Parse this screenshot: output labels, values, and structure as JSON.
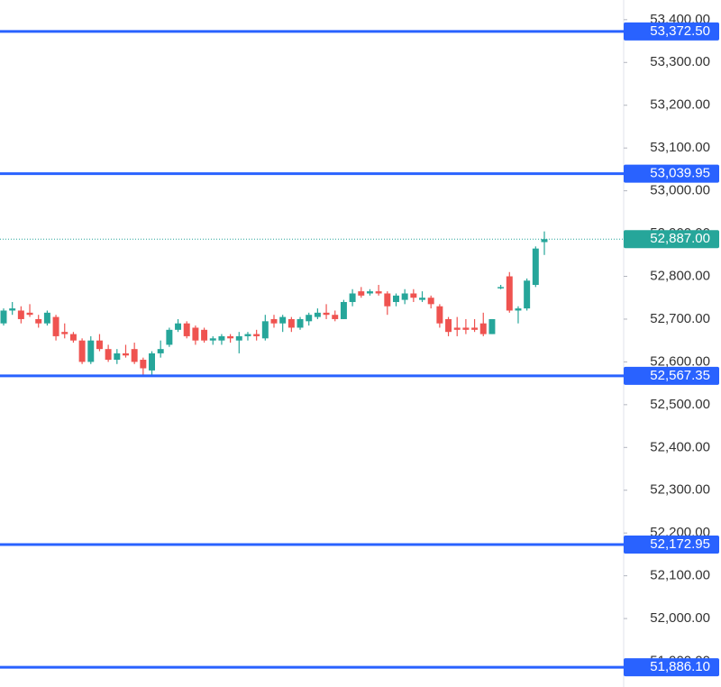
{
  "chart_data": {
    "type": "candlestick",
    "open": [
      52690,
      52720,
      52720,
      52715,
      52700,
      52690,
      52705,
      52670,
      52665,
      52650,
      52600,
      52650,
      52630,
      52605,
      52620,
      52630,
      52605,
      52580,
      52620,
      52640,
      52675,
      52690,
      52680,
      52675,
      52650,
      52650,
      52660,
      52650,
      52660,
      52665,
      52655,
      52700,
      52690,
      52700,
      52680,
      52695,
      52705,
      52715,
      52710,
      52700,
      52740,
      52765,
      52760,
      52765,
      52760,
      52740,
      52745,
      52760,
      52745,
      52750,
      52730,
      52700,
      52680,
      52680,
      52680,
      52690,
      52665,
      52775,
      52800,
      52720,
      52725,
      52780,
      52880
    ],
    "high": [
      52725,
      52740,
      52730,
      52735,
      52710,
      52720,
      52710,
      52690,
      52670,
      52655,
      52660,
      52665,
      52640,
      52630,
      52640,
      52645,
      52610,
      52625,
      52650,
      52680,
      52700,
      52695,
      52685,
      52680,
      52660,
      52665,
      52665,
      52670,
      52670,
      52675,
      52710,
      52710,
      52710,
      52705,
      52705,
      52715,
      52725,
      52735,
      52720,
      52745,
      52770,
      52775,
      52770,
      52780,
      52765,
      52760,
      52770,
      52770,
      52765,
      52755,
      52735,
      52705,
      52705,
      52700,
      52700,
      52715,
      52700,
      52780,
      52810,
      52730,
      52795,
      52870,
      52905
    ],
    "low": [
      52685,
      52710,
      52690,
      52705,
      52680,
      52685,
      52650,
      52655,
      52645,
      52595,
      52595,
      52625,
      52600,
      52595,
      52610,
      52595,
      52570,
      52567,
      52610,
      52635,
      52670,
      52655,
      52640,
      52645,
      52640,
      52640,
      52645,
      52620,
      52650,
      52650,
      52650,
      52680,
      52670,
      52670,
      52675,
      52685,
      52700,
      52700,
      52695,
      52700,
      52730,
      52750,
      52755,
      52755,
      52710,
      52730,
      52735,
      52740,
      52740,
      52725,
      52680,
      52660,
      52660,
      52665,
      52670,
      52660,
      52665,
      52770,
      52715,
      52690,
      52720,
      52775,
      52850
    ],
    "close": [
      52720,
      52725,
      52700,
      52710,
      52690,
      52715,
      52660,
      52665,
      52650,
      52600,
      52650,
      52630,
      52605,
      52620,
      52615,
      52600,
      52585,
      52620,
      52630,
      52675,
      52690,
      52660,
      52650,
      52650,
      52655,
      52660,
      52655,
      52660,
      52665,
      52660,
      52695,
      52690,
      52705,
      52680,
      52700,
      52710,
      52715,
      52710,
      52700,
      52740,
      52760,
      52755,
      52765,
      52760,
      52730,
      52755,
      52760,
      52750,
      52750,
      52735,
      52690,
      52670,
      52675,
      52675,
      52675,
      52665,
      52700,
      52775,
      52720,
      52725,
      52790,
      52865,
      52887
    ],
    "up_color": "#26a69a",
    "down_color": "#ef5350",
    "ylim": [
      51840,
      53446
    ],
    "yticks": [
      {
        "value": 53400,
        "label": "53,400.00"
      },
      {
        "value": 53300,
        "label": "53,300.00"
      },
      {
        "value": 53200,
        "label": "53,200.00"
      },
      {
        "value": 53100,
        "label": "53,100.00"
      },
      {
        "value": 53000,
        "label": "53,000.00"
      },
      {
        "value": 52900,
        "label": "52,900.00"
      },
      {
        "value": 52800,
        "label": "52,800.00"
      },
      {
        "value": 52700,
        "label": "52,700.00"
      },
      {
        "value": 52600,
        "label": "52,600.00"
      },
      {
        "value": 52500,
        "label": "52,500.00"
      },
      {
        "value": 52400,
        "label": "52,400.00"
      },
      {
        "value": 52300,
        "label": "52,300.00"
      },
      {
        "value": 52200,
        "label": "52,200.00"
      },
      {
        "value": 52100,
        "label": "52,100.00"
      },
      {
        "value": 52000,
        "label": "52,000.00"
      },
      {
        "value": 51900,
        "label": "51,900.00"
      }
    ],
    "levels": [
      {
        "value": 53372.5,
        "label": "53,372.50"
      },
      {
        "value": 53039.95,
        "label": "53,039.95"
      },
      {
        "value": 52567.35,
        "label": "52,567.35"
      },
      {
        "value": 52172.95,
        "label": "52,172.95"
      },
      {
        "value": 51886.1,
        "label": "51,886.10"
      }
    ],
    "level_color": "#2962ff",
    "last_price": {
      "value": 52887,
      "label": "52,887.00",
      "color": "#26a69a"
    }
  }
}
